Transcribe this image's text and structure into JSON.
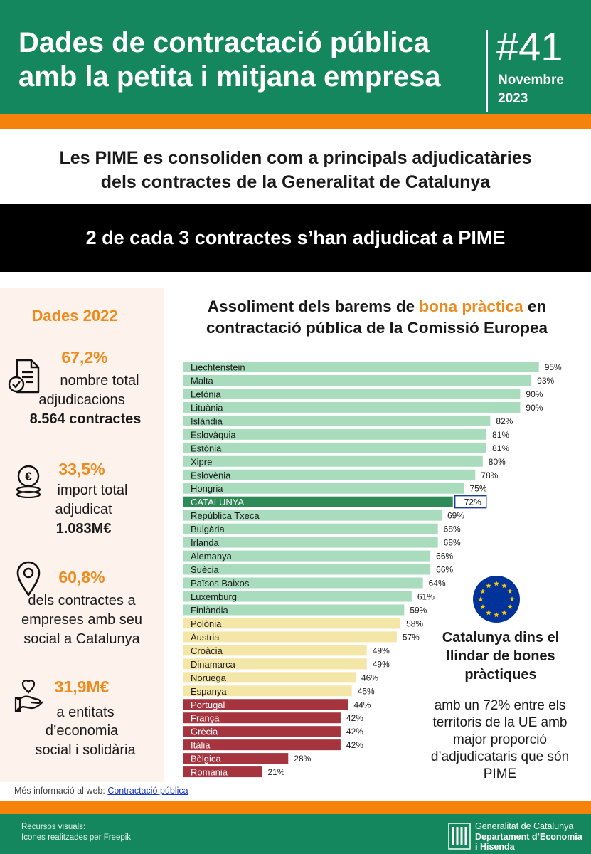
{
  "header": {
    "title_line1": "Dades de contractació pública",
    "title_line2": "amb la petita i mitjana empresa",
    "issue_number": "#41",
    "issue_month": "Novembre",
    "issue_year": "2023"
  },
  "subtitle_line1": "Les PIME es consoliden com a principals adjudicatàries",
  "subtitle_line2": "dels contractes de la Generalitat de Catalunya",
  "banner": "2 de cada 3 contractes s’han adjudicat a PIME",
  "left_panel": {
    "title": "Dades 2022",
    "stats": [
      {
        "value": "67,2%",
        "line1": "nombre total",
        "line2": "adjudicacions",
        "strong": "8.564 contractes",
        "icon": "contract-document-icon"
      },
      {
        "value": "33,5%",
        "line1": "import total",
        "line2": "adjudicat",
        "strong": "1.083M€",
        "icon": "euro-coins-icon"
      },
      {
        "value": "60,8%",
        "line1": "dels contractes a",
        "line2": "empreses amb seu",
        "line3": "social a Catalunya",
        "icon": "location-pin-icon"
      },
      {
        "value": "31,9M€",
        "line1": "a entitats",
        "line2": "d’economia",
        "line3": "social i solidària",
        "icon": "hand-heart-icon"
      }
    ]
  },
  "chart_title": {
    "part1": "Assoliment dels barems de ",
    "highlight": "bona pràctica",
    "part2": " en",
    "line2": "contractació pública de la Comissió Europea"
  },
  "chart_data": {
    "type": "bar",
    "orientation": "horizontal",
    "unit": "%",
    "xlim": [
      0,
      100
    ],
    "categories": [
      "Liechtenstein",
      "Malta",
      "Letònia",
      "Lituània",
      "Islàndia",
      "Eslovàquia",
      "Estònia",
      "Xipre",
      "Eslovènia",
      "Hongria",
      "CATALUNYA",
      "República Txeca",
      "Bulgària",
      "Irlanda",
      "Alemanya",
      "Suècia",
      "Països Baixos",
      "Luxemburg",
      "Finlàndia",
      "Polònia",
      "Àustria",
      "Croàcia",
      "Dinamarca",
      "Noruega",
      "Espanya",
      "Portugal",
      "França",
      "Grècia",
      "Itàlia",
      "Bèlgica",
      "Romania"
    ],
    "values": [
      95,
      93,
      90,
      90,
      82,
      81,
      81,
      80,
      78,
      75,
      72,
      69,
      68,
      68,
      66,
      66,
      64,
      61,
      59,
      58,
      57,
      49,
      49,
      46,
      45,
      44,
      42,
      42,
      42,
      28,
      21
    ],
    "value_labels": [
      "95%",
      "93%",
      "90%",
      "90%",
      "82%",
      "81%",
      "81%",
      "80%",
      "78%",
      "75%",
      "72%",
      "69%",
      "68%",
      "68%",
      "66%",
      "66%",
      "64%",
      "61%",
      "59%",
      "58%",
      "57%",
      "49%",
      "49%",
      "46%",
      "45%",
      "44%",
      "42%",
      "42%",
      "42%",
      "28%",
      "21%"
    ],
    "groups": [
      "green",
      "green",
      "green",
      "green",
      "green",
      "green",
      "green",
      "green",
      "green",
      "green",
      "catalunya",
      "green",
      "green",
      "green",
      "green",
      "green",
      "green",
      "green",
      "green",
      "yellow",
      "yellow",
      "yellow",
      "yellow",
      "yellow",
      "yellow",
      "red",
      "red",
      "red",
      "red",
      "red",
      "red"
    ],
    "colors": {
      "green": "#a8dcbd",
      "catalunya": "#2e8a57",
      "yellow": "#f4e6a6",
      "red": "#a5343f"
    },
    "grid": false,
    "legend": "none"
  },
  "eu_box": {
    "heading_line1": "Catalunya dins el",
    "heading_line2": "llindar de bones",
    "heading_line3": "pràctiques",
    "text_line1": "amb un 72% entre els",
    "text_line2": "territoris de la UE amb",
    "text_line3": "major proporció",
    "text_line4": "d’adjudicataris que són",
    "text_line5": "PIME"
  },
  "footer": {
    "more_info_prefix": "Més informació al web: ",
    "more_info_link": "Contractació pública",
    "credits_line1": "Recursos visuals:",
    "credits_line2": "Icones realitzades per Freepik",
    "gencat_line1": "Generalitat de Catalunya",
    "gencat_line2": "Departament d’Economia",
    "gencat_line3": "i Hisenda"
  }
}
